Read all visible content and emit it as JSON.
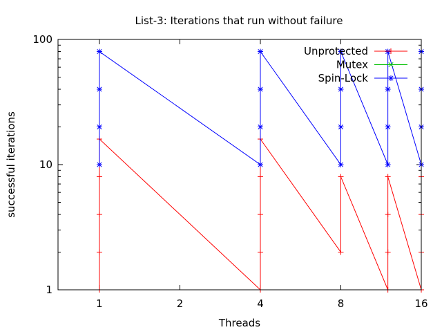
{
  "chart_data": {
    "type": "line",
    "title": "List-3: Iterations that run without failure",
    "xlabel": "Threads",
    "ylabel": "successful iterations",
    "x_scale": "log",
    "y_scale": "log",
    "xlim": [
      0.7,
      16
    ],
    "ylim": [
      1,
      100
    ],
    "x_ticks": [
      1,
      2,
      4,
      8,
      16
    ],
    "y_ticks": [
      1,
      10,
      100
    ],
    "legend_position": "top-right",
    "series": [
      {
        "name": "Unprotected",
        "color": "#ff0000",
        "marker": "plus",
        "points": [
          [
            1,
            1
          ],
          [
            1,
            2
          ],
          [
            1,
            4
          ],
          [
            1,
            8
          ],
          [
            1,
            16
          ],
          [
            4,
            1
          ],
          [
            4,
            2
          ],
          [
            4,
            4
          ],
          [
            4,
            8
          ],
          [
            4,
            16
          ],
          [
            8,
            2
          ],
          [
            8,
            8
          ],
          [
            12,
            1
          ],
          [
            12,
            2
          ],
          [
            12,
            4
          ],
          [
            12,
            8
          ],
          [
            16,
            1
          ],
          [
            16,
            2
          ],
          [
            16,
            4
          ],
          [
            16,
            8
          ]
        ]
      },
      {
        "name": "Mutex",
        "color": "#00c000",
        "marker": "cross",
        "points": []
      },
      {
        "name": "Spin-Lock",
        "color": "#0000ff",
        "marker": "star",
        "points": [
          [
            1,
            10
          ],
          [
            1,
            20
          ],
          [
            1,
            40
          ],
          [
            1,
            80
          ],
          [
            4,
            10
          ],
          [
            4,
            20
          ],
          [
            4,
            40
          ],
          [
            4,
            80
          ],
          [
            8,
            10
          ],
          [
            8,
            20
          ],
          [
            8,
            40
          ],
          [
            8,
            80
          ],
          [
            12,
            10
          ],
          [
            12,
            20
          ],
          [
            12,
            40
          ],
          [
            12,
            80
          ],
          [
            16,
            10
          ],
          [
            16,
            20
          ],
          [
            16,
            40
          ],
          [
            16,
            80
          ]
        ]
      }
    ]
  }
}
